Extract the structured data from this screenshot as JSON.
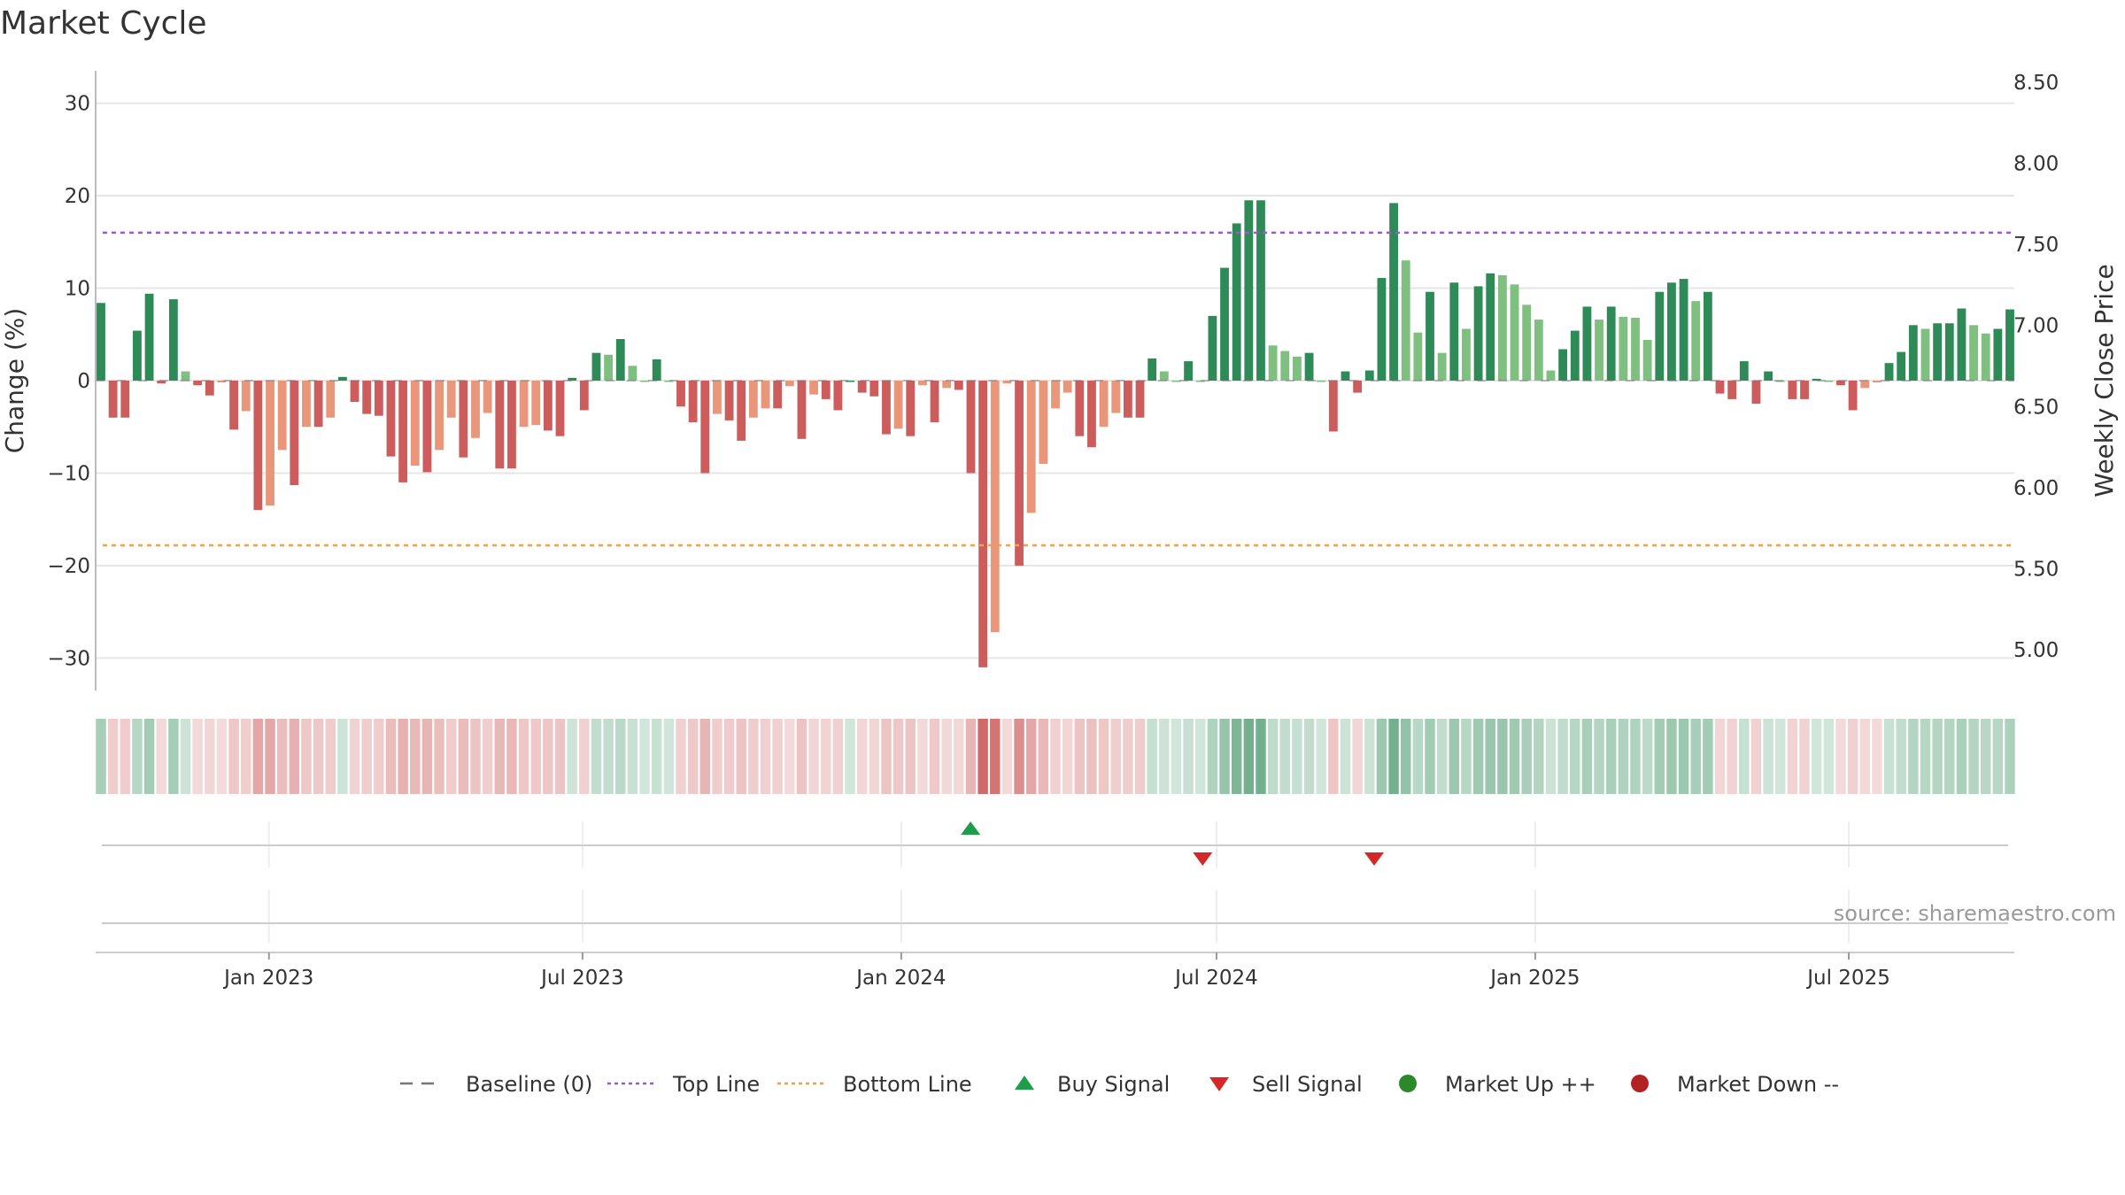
{
  "chart_data": {
    "type": "bar",
    "title": "Market Cycle",
    "ylabel": "Change (%)",
    "y2label": "Weekly Close Price",
    "ylim": [
      -33.5,
      33.5
    ],
    "y2lim": [
      4.75,
      8.57
    ],
    "yticks": [
      30,
      20,
      10,
      0,
      -10,
      -20,
      -30
    ],
    "ytick_labels": [
      "30",
      "20",
      "10",
      "0",
      "−10",
      "−20",
      "−30"
    ],
    "y2ticks": [
      8.5,
      8.0,
      7.5,
      7.0,
      6.5,
      6.0,
      5.5,
      5.0
    ],
    "y2tick_labels": [
      "8.50",
      "8.00",
      "7.50",
      "7.00",
      "6.50",
      "6.00",
      "5.50",
      "5.00"
    ],
    "x_start": "2022-09-26",
    "x_end": "2025-10-02",
    "xticks": [
      "2023-01-01",
      "2023-07-01",
      "2024-01-01",
      "2024-07-01",
      "2025-01-01",
      "2025-07-01"
    ],
    "xtick_labels": [
      "Jan 2023",
      "Jul 2023",
      "Jan 2024",
      "Jul 2024",
      "Jan 2025",
      "Jul 2025"
    ],
    "top_line": 16,
    "bottom_line": -17.8,
    "grid": true,
    "legend_position": "bottom",
    "series": [
      {
        "name": "Change (%)",
        "values": [
          8.4,
          -4.0,
          -4.0,
          5.4,
          9.4,
          -0.3,
          8.8,
          1.0,
          -0.5,
          -1.6,
          -0.2,
          -5.3,
          -3.3,
          -14.0,
          -13.5,
          -7.5,
          -11.3,
          -5.0,
          -5.0,
          -4.0,
          0.4,
          -2.3,
          -3.6,
          -3.8,
          -8.2,
          -11.0,
          -9.2,
          -9.9,
          -7.5,
          -4.0,
          -8.3,
          -6.2,
          -3.5,
          -9.5,
          -9.5,
          -5.0,
          -4.8,
          -5.4,
          -6.0,
          0.3,
          -3.2,
          3.0,
          2.8,
          4.5,
          1.6,
          0.0,
          2.3,
          0.0,
          -2.8,
          -4.5,
          -10.0,
          -3.6,
          -4.3,
          -6.5,
          -4.0,
          -3.0,
          -3.0,
          -0.6,
          -6.3,
          -1.5,
          -2.0,
          -3.2,
          0.0,
          -1.3,
          -1.7,
          -5.8,
          -5.2,
          -6.0,
          -0.5,
          -4.5,
          -0.8,
          -1.0,
          -10.0,
          -31.0,
          -27.2,
          -0.3,
          -20.0,
          -14.3,
          -9.0,
          -3.0,
          -1.3,
          -6.0,
          -7.2,
          -5.0,
          -3.5,
          -4.0,
          -4.0,
          2.4,
          1.0,
          0.0,
          2.1,
          0.0,
          7.0,
          12.2,
          17.0,
          19.5,
          19.5,
          3.8,
          3.2,
          2.6,
          3.0,
          0.0,
          -5.5,
          1.0,
          -1.3,
          1.1,
          11.1,
          19.2,
          13.0,
          5.2,
          9.6,
          3.0,
          10.6,
          5.6,
          10.2,
          11.6,
          11.4,
          10.4,
          8.2,
          6.6,
          1.1,
          3.4,
          5.4,
          8.0,
          6.6,
          8.0,
          6.9,
          6.8,
          4.4,
          9.6,
          10.6,
          11.0,
          8.6,
          9.6,
          -1.4,
          -2.0,
          2.1,
          -2.5,
          1.0,
          0.0,
          -2.0,
          -2.0,
          0.2,
          0.0,
          -0.5,
          -3.2,
          -0.8,
          -0.2,
          1.9,
          3.1,
          6.0,
          5.6,
          6.2,
          6.2,
          7.8,
          6.0,
          5.1,
          5.6,
          7.7
        ]
      }
    ],
    "buy_signals": [
      "2024-02-10"
    ],
    "sell_signals": [
      "2024-06-23",
      "2024-09-30"
    ],
    "strip": {
      "label": "market state strip"
    },
    "colors": {
      "up_strong": "#2e8b57",
      "up_light": "#7fbf7f",
      "down_strong": "#cd5c5c",
      "down_light": "#e9967a",
      "top_line": "#9b59d0",
      "bottom_line": "#f0a050",
      "buy": "#1e9e4a",
      "sell": "#d62728",
      "market_up": "#2a8a2a",
      "market_down": "#b22222",
      "baseline": "#777777"
    }
  },
  "legend": [
    {
      "label": "Baseline (0)",
      "icon": "dash-line-icon"
    },
    {
      "label": "Top Line",
      "icon": "dotted-purple-line-icon"
    },
    {
      "label": "Bottom Line",
      "icon": "dotted-orange-line-icon"
    },
    {
      "label": "Buy Signal",
      "icon": "up-triangle-icon"
    },
    {
      "label": "Sell Signal",
      "icon": "down-triangle-icon"
    },
    {
      "label": "Market Up ++",
      "icon": "green-dot-icon"
    },
    {
      "label": "Market Down --",
      "icon": "red-dot-icon"
    }
  ],
  "source": "source: sharemaestro.com"
}
